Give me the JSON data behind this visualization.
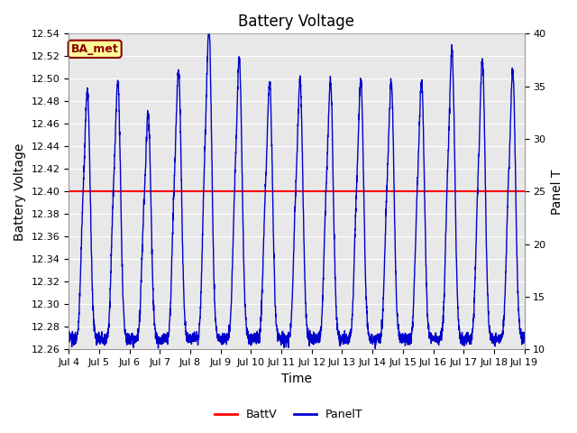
{
  "title": "Battery Voltage",
  "xlabel": "Time",
  "ylabel_left": "Battery Voltage",
  "ylabel_right": "Panel T",
  "ylim_left": [
    12.26,
    12.54
  ],
  "ylim_right": [
    10,
    40
  ],
  "yticks_left": [
    12.26,
    12.28,
    12.3,
    12.32,
    12.34,
    12.36,
    12.38,
    12.4,
    12.42,
    12.44,
    12.46,
    12.48,
    12.5,
    12.52,
    12.54
  ],
  "yticks_right": [
    10,
    15,
    20,
    25,
    30,
    35,
    40
  ],
  "xtick_labels": [
    "Jul 4",
    "Jul 5",
    "Jul 6",
    "Jul 7",
    "Jul 8",
    "Jul 9",
    "Jul 10",
    "Jul 11",
    "Jul 12",
    "Jul 13",
    "Jul 14",
    "Jul 15",
    "Jul 16",
    "Jul 17",
    "Jul 18",
    "Jul 19"
  ],
  "battv_value": 12.4,
  "battv_color": "#ff0000",
  "panelt_color": "#0000cc",
  "plot_bg_color": "#e8e8e8",
  "fig_bg_color": "#ffffff",
  "grid_color": "#ffffff",
  "annotation_text": "BA_met",
  "annotation_bg": "#ffff99",
  "annotation_border": "#8b0000",
  "legend_labels": [
    "BattV",
    "PanelT"
  ],
  "title_fontsize": 12,
  "axis_label_fontsize": 10,
  "tick_fontsize": 8
}
